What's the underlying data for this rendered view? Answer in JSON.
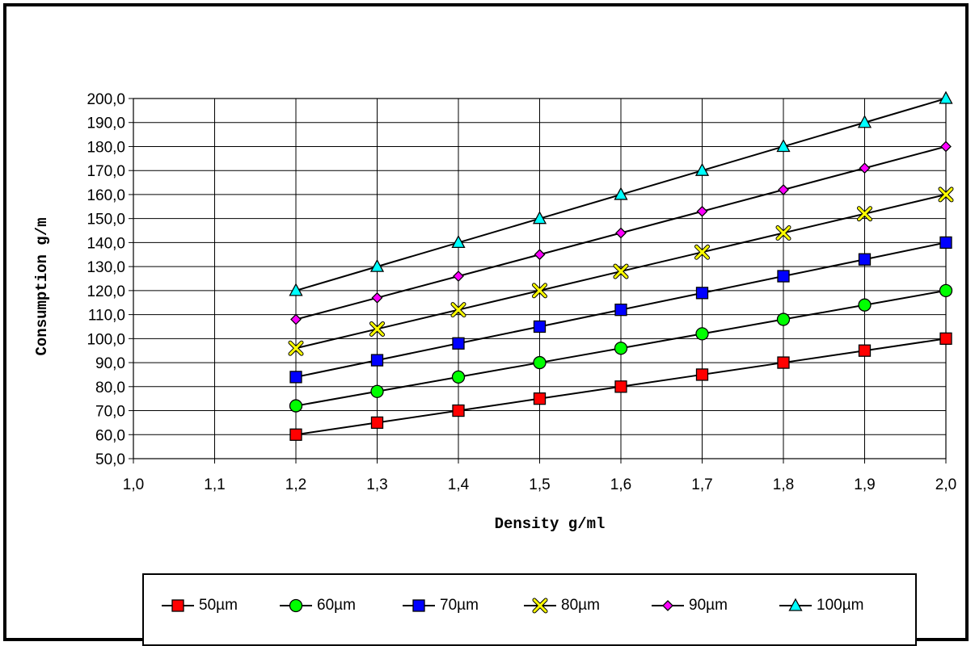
{
  "chart_data": {
    "type": "line",
    "xlabel": "Density g/ml",
    "ylabel": "Consumption g/m",
    "xlim": [
      1.0,
      2.0
    ],
    "ylim": [
      50,
      200
    ],
    "x_ticks": [
      "1,0",
      "1,1",
      "1,2",
      "1,3",
      "1,4",
      "1,5",
      "1,6",
      "1,7",
      "1,8",
      "1,9",
      "2,0"
    ],
    "y_ticks": [
      "50,0",
      "60,0",
      "70,0",
      "80,0",
      "90,0",
      "100,0",
      "110,0",
      "120,0",
      "130,0",
      "140,0",
      "150,0",
      "160,0",
      "170,0",
      "180,0",
      "190,0",
      "200,0"
    ],
    "grid": true,
    "legend_position": "bottom",
    "x": [
      1.2,
      1.3,
      1.4,
      1.5,
      1.6,
      1.7,
      1.8,
      1.9,
      2.0
    ],
    "series": [
      {
        "name": "50µm",
        "marker": "square",
        "color": "#ff0000",
        "values": [
          60,
          65,
          70,
          75,
          80,
          85,
          90,
          95,
          100
        ]
      },
      {
        "name": "60µm",
        "marker": "circle",
        "color": "#00ff00",
        "values": [
          72,
          78,
          84,
          90,
          96,
          102,
          108,
          114,
          120
        ]
      },
      {
        "name": "70µm",
        "marker": "square",
        "color": "#0000ff",
        "values": [
          84,
          91,
          98,
          105,
          112,
          119,
          126,
          133,
          140
        ]
      },
      {
        "name": "80µm",
        "marker": "x",
        "color": "#ffff00",
        "values": [
          96,
          104,
          112,
          120,
          128,
          136,
          144,
          152,
          160
        ]
      },
      {
        "name": "90µm",
        "marker": "diamond",
        "color": "#ff00ff",
        "values": [
          108,
          117,
          126,
          135,
          144,
          153,
          162,
          171,
          180
        ]
      },
      {
        "name": "100µm",
        "marker": "triangle",
        "color": "#00ffff",
        "values": [
          120,
          130,
          140,
          150,
          160,
          170,
          180,
          190,
          200
        ]
      }
    ]
  }
}
